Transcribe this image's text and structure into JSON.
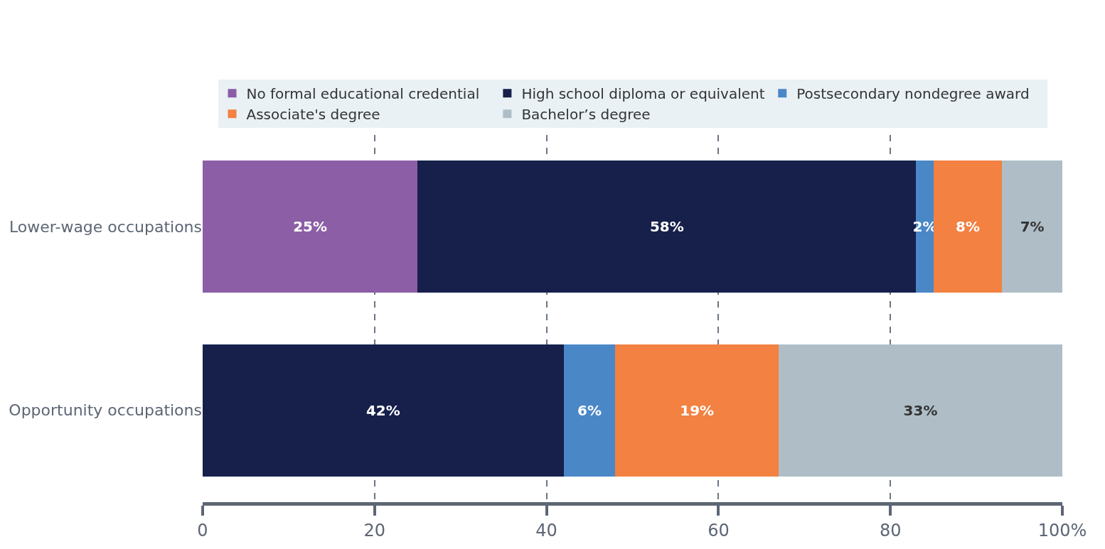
{
  "chart_data": {
    "type": "bar",
    "orientation": "horizontal",
    "stacked": true,
    "categories": [
      "Lower-wage occupations",
      "Opportunity occupations"
    ],
    "series": [
      {
        "name": "No formal educational credential",
        "color": "#8b5ea6",
        "values": [
          25,
          null
        ],
        "value_labels": [
          "25%",
          null
        ]
      },
      {
        "name": "High school diploma or equivalent",
        "color": "#16204b",
        "values": [
          58,
          42
        ],
        "value_labels": [
          "58%",
          "42%"
        ]
      },
      {
        "name": "Postsecondary nondegree award",
        "color": "#4a87c7",
        "values": [
          2,
          6
        ],
        "value_labels": [
          "2%",
          "6%"
        ]
      },
      {
        "name": "Associate's degree",
        "color": "#f38141",
        "values": [
          8,
          19
        ],
        "value_labels": [
          "8%",
          "19%"
        ]
      },
      {
        "name": "Bachelor’s degree",
        "color": "#afbec6",
        "values": [
          7,
          33
        ],
        "value_labels": [
          "7%",
          "33%"
        ]
      }
    ],
    "xlim": [
      0,
      100
    ],
    "xticks": [
      0,
      20,
      40,
      60,
      80,
      {
        "value": 100,
        "label": "100%"
      }
    ],
    "grid": "x",
    "legend": "top"
  }
}
